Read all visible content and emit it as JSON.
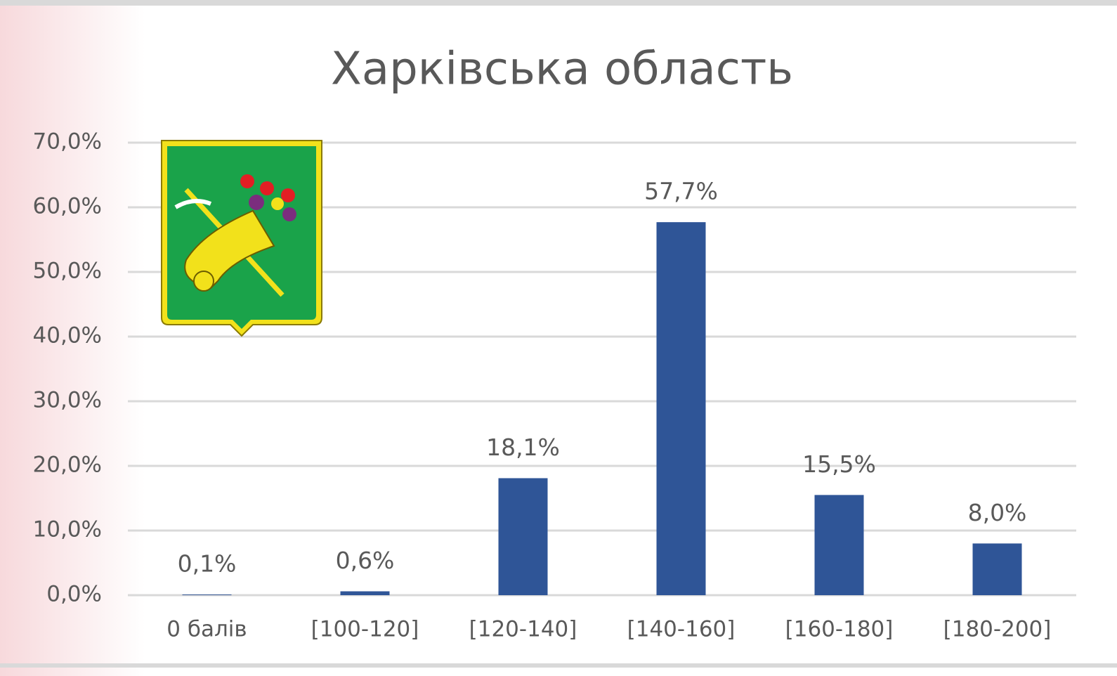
{
  "chart_data": {
    "type": "bar",
    "title": "Харківська область",
    "categories": [
      "0 балів",
      "[100-120]",
      "[120-140]",
      "[140-160]",
      "[160-180]",
      "[180-200]"
    ],
    "values": [
      0.1,
      0.6,
      18.1,
      57.7,
      15.5,
      8.0
    ],
    "value_labels": [
      "0,1%",
      "0,6%",
      "18,1%",
      "57,7%",
      "15,5%",
      "8,0%"
    ],
    "color": "#2f5597",
    "ylim": [
      0,
      70
    ],
    "yticks": [
      {
        "value": 0,
        "label": "0,0%"
      },
      {
        "value": 10,
        "label": "10,0%"
      },
      {
        "value": 20,
        "label": "20,0%"
      },
      {
        "value": 30,
        "label": "30,0%"
      },
      {
        "value": 40,
        "label": "40,0%"
      },
      {
        "value": 50,
        "label": "50,0%"
      },
      {
        "value": 60,
        "label": "60,0%"
      },
      {
        "value": 70,
        "label": "70,0%"
      }
    ],
    "grid": true
  }
}
